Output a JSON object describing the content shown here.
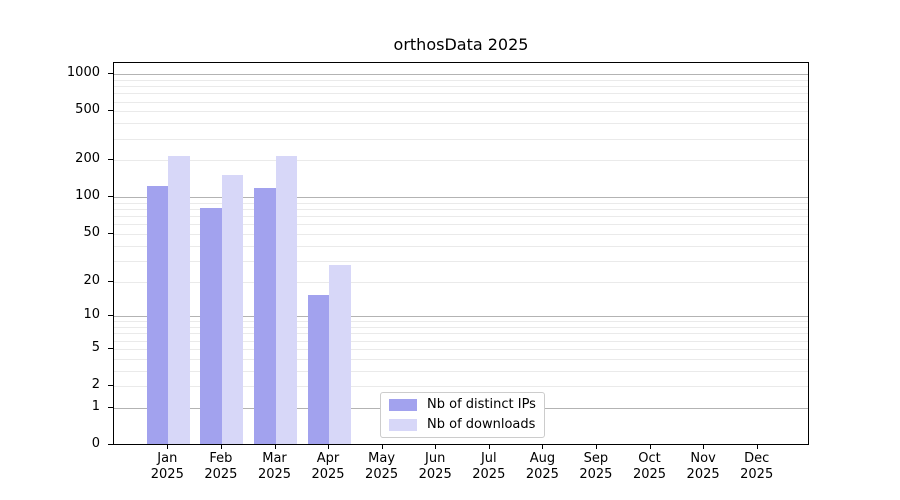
{
  "chart_data": {
    "type": "bar",
    "title": "orthosData 2025",
    "categories": [
      "Jan",
      "Feb",
      "Mar",
      "Apr",
      "May",
      "Jun",
      "Jul",
      "Aug",
      "Sep",
      "Oct",
      "Nov",
      "Dec"
    ],
    "x_sublabel": "2025",
    "series": [
      {
        "name": "Nb of distinct IPs",
        "color": "#a2a2ee",
        "values": [
          122,
          80,
          116,
          15,
          0,
          0,
          0,
          0,
          0,
          0,
          0,
          0
        ]
      },
      {
        "name": "Nb of downloads",
        "color": "#d7d7f8",
        "values": [
          215,
          150,
          215,
          27,
          0,
          0,
          0,
          0,
          0,
          0,
          0,
          0
        ]
      }
    ],
    "y_axis": {
      "scale": "log10(1+x)",
      "ticks": [
        0,
        1,
        2,
        5,
        10,
        20,
        50,
        100,
        200,
        500,
        1000
      ],
      "top_value": 1233
    },
    "grid": {
      "show": "both",
      "major_ticks": [
        1,
        10,
        100,
        1000
      ],
      "minor_base": [
        2,
        3,
        4,
        5,
        6,
        7,
        8,
        9
      ],
      "minor_decades": [
        1,
        10,
        100
      ],
      "major_color": "#b3b3b3",
      "minor_color": "#eaeaea"
    },
    "legend": {
      "position": "lower-center",
      "border_color": "#cccccc",
      "background": "#ffffff"
    },
    "colors": {
      "axis": "#000000",
      "text": "#000000",
      "background": "#ffffff"
    }
  }
}
